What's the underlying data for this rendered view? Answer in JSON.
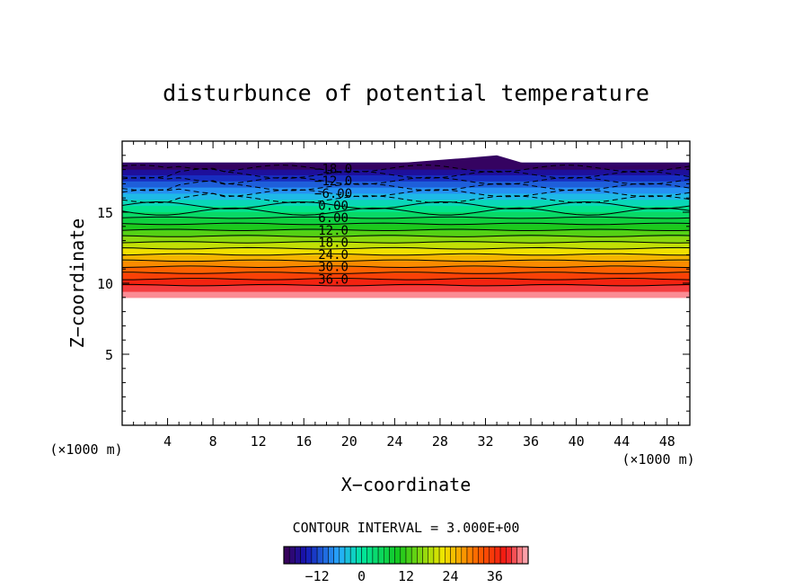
{
  "chart_data": {
    "type": "heatmap",
    "title": "disturbunce of potential temperature",
    "xlabel": "X−coordinate",
    "ylabel": "Z−coordinate",
    "x_unit": "(×1000 m)",
    "y_unit": "(×1000 m)",
    "xlim": [
      0,
      50
    ],
    "ylim": [
      0,
      20
    ],
    "x_ticks": [
      "4",
      "8",
      "12",
      "16",
      "20",
      "24",
      "28",
      "32",
      "36",
      "40",
      "44",
      "48"
    ],
    "y_ticks": [
      "5",
      "10",
      "15"
    ],
    "contour_interval_text": "CONTOUR INTERVAL = 3.000E+00",
    "contour_labels": [
      "−18.0",
      "−12.0",
      "−6.00",
      "0.00",
      "6.00",
      "12.0",
      "18.0",
      "24.0",
      "30.0",
      "36.0"
    ],
    "colorbar": {
      "ticks": [
        "−12",
        "0",
        "12",
        "24",
        "36"
      ],
      "range": [
        -21,
        45
      ]
    },
    "field_extent_z": [
      9,
      18.5
    ]
  }
}
